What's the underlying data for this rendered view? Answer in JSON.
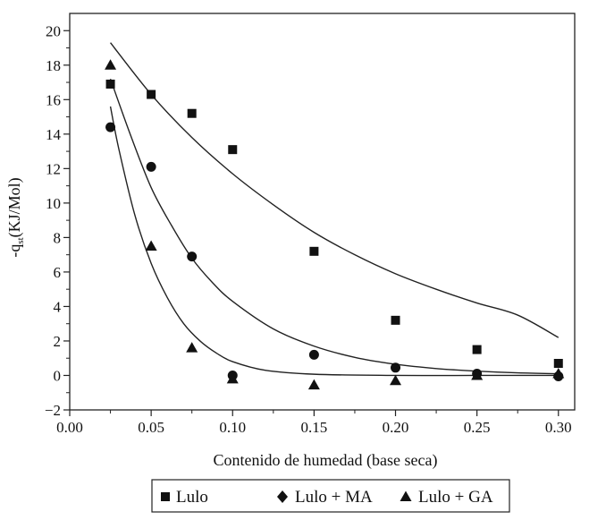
{
  "chart_data": {
    "type": "scatter",
    "title": "",
    "xlabel": "Contenido de humedad (base seca)",
    "ylabel_main": "-q",
    "ylabel_sub": "st",
    "ylabel_unit": "(KJ/Mol)",
    "xlim": [
      0.0,
      0.31
    ],
    "ylim": [
      -2,
      21
    ],
    "xticks": [
      0.0,
      0.05,
      0.1,
      0.15,
      0.2,
      0.25,
      0.3
    ],
    "xtick_labels": [
      "0.00",
      "0.05",
      "0.10",
      "0.15",
      "0.20",
      "0.25",
      "0.30"
    ],
    "yticks": [
      -2,
      0,
      2,
      4,
      6,
      8,
      10,
      12,
      14,
      16,
      18,
      20
    ],
    "ytick_labels": [
      "−2",
      "0",
      "2",
      "4",
      "6",
      "8",
      "10",
      "12",
      "14",
      "16",
      "18",
      "20"
    ],
    "grid": false,
    "legend_position": "bottom-center",
    "series": [
      {
        "name": "Lulo",
        "marker": "square",
        "x": [
          0.025,
          0.05,
          0.075,
          0.1,
          0.15,
          0.2,
          0.25,
          0.3
        ],
        "y": [
          16.9,
          16.3,
          15.2,
          13.1,
          7.2,
          3.2,
          1.5,
          0.7
        ],
        "fit": [
          [
            0.025,
            19.3
          ],
          [
            0.05,
            16.3
          ],
          [
            0.075,
            13.8
          ],
          [
            0.1,
            11.7
          ],
          [
            0.125,
            9.9
          ],
          [
            0.15,
            8.3
          ],
          [
            0.175,
            7.0
          ],
          [
            0.2,
            5.9
          ],
          [
            0.225,
            5.0
          ],
          [
            0.25,
            4.2
          ],
          [
            0.275,
            3.5
          ],
          [
            0.3,
            2.2
          ]
        ]
      },
      {
        "name": "Lulo + MA",
        "marker": "circle",
        "legend_marker": "diamond",
        "x": [
          0.025,
          0.05,
          0.075,
          0.1,
          0.15,
          0.2,
          0.25,
          0.3
        ],
        "y": [
          14.4,
          12.1,
          6.9,
          0.0,
          1.2,
          0.45,
          0.1,
          -0.05
        ],
        "fit": [
          [
            0.025,
            17.2
          ],
          [
            0.0375,
            13.9
          ],
          [
            0.05,
            10.9
          ],
          [
            0.0625,
            8.7
          ],
          [
            0.075,
            6.8
          ],
          [
            0.0875,
            5.4
          ],
          [
            0.1,
            4.3
          ],
          [
            0.125,
            2.7
          ],
          [
            0.15,
            1.7
          ],
          [
            0.175,
            1.05
          ],
          [
            0.2,
            0.65
          ],
          [
            0.225,
            0.4
          ],
          [
            0.25,
            0.25
          ],
          [
            0.275,
            0.15
          ],
          [
            0.3,
            0.1
          ]
        ]
      },
      {
        "name": "Lulo + GA",
        "marker": "triangle",
        "x": [
          0.025,
          0.05,
          0.075,
          0.1,
          0.15,
          0.2,
          0.25,
          0.3
        ],
        "y": [
          18.0,
          7.5,
          1.6,
          -0.2,
          -0.55,
          -0.3,
          0.0,
          0.1
        ],
        "fit": [
          [
            0.025,
            15.6
          ],
          [
            0.03,
            13.2
          ],
          [
            0.04,
            9.3
          ],
          [
            0.05,
            6.5
          ],
          [
            0.06,
            4.5
          ],
          [
            0.07,
            3.0
          ],
          [
            0.08,
            2.0
          ],
          [
            0.09,
            1.3
          ],
          [
            0.1,
            0.8
          ],
          [
            0.12,
            0.3
          ],
          [
            0.15,
            0.07
          ],
          [
            0.2,
            0.0
          ],
          [
            0.25,
            0.0
          ],
          [
            0.3,
            0.0
          ]
        ]
      }
    ]
  },
  "legend": {
    "items": [
      {
        "label": "Lulo",
        "marker": "square"
      },
      {
        "label": "Lulo + MA",
        "marker": "diamond"
      },
      {
        "label": "Lulo + GA",
        "marker": "triangle"
      }
    ]
  }
}
